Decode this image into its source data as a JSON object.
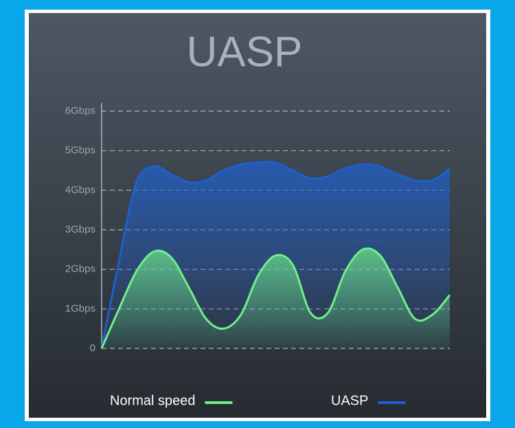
{
  "chart_data": {
    "type": "area",
    "title": "UASP",
    "categories": [
      null,
      null,
      null,
      null,
      null,
      null,
      null,
      null,
      null,
      null,
      null,
      null,
      null,
      null,
      null,
      null,
      null,
      null,
      null,
      null,
      null
    ],
    "series": [
      {
        "name": "UASP",
        "color": "#1f5fcc",
        "values": [
          0,
          2.2,
          4.2,
          4.6,
          4.4,
          4.2,
          4.25,
          4.5,
          4.65,
          4.7,
          4.7,
          4.5,
          4.3,
          4.35,
          4.55,
          4.65,
          4.6,
          4.4,
          4.25,
          4.25,
          4.55
        ]
      },
      {
        "name": "Normal speed",
        "color": "#6ef08a",
        "values": [
          0,
          1.0,
          1.95,
          2.45,
          2.3,
          1.55,
          0.75,
          0.5,
          0.85,
          1.85,
          2.35,
          2.1,
          0.9,
          0.9,
          1.95,
          2.5,
          2.35,
          1.55,
          0.75,
          0.85,
          1.35
        ]
      }
    ],
    "legend_order": [
      "Normal speed",
      "UASP"
    ],
    "ylim": [
      0,
      6
    ],
    "yticks": [
      0,
      {
        "value": 1,
        "label": "1Gbps"
      },
      {
        "value": 2,
        "label": "2Gbps"
      },
      {
        "value": 3,
        "label": "3Gbps"
      },
      {
        "value": 4,
        "label": "4Gbps"
      },
      {
        "value": 5,
        "label": "5Gbps"
      },
      {
        "value": 6,
        "label": "6Gbps"
      }
    ],
    "grid": true
  }
}
